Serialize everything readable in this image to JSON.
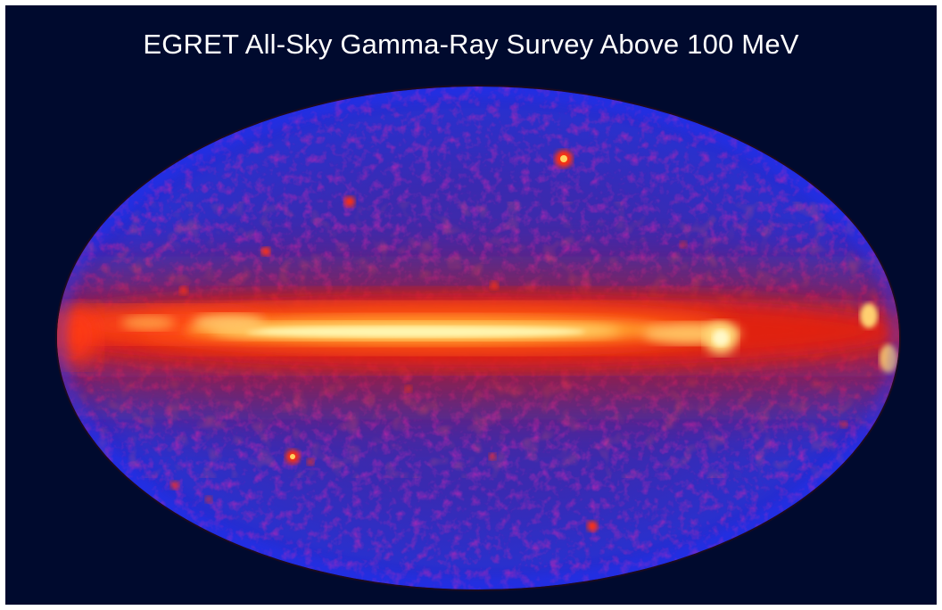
{
  "image": {
    "title": "EGRET All-Sky Gamma-Ray Survey Above 100 MeV",
    "colors": {
      "background": "#000a2e",
      "sky_base": "#2a2db8",
      "sky_edge": "#1c2bd8",
      "plane_red": "#e0200c",
      "plane_orange": "#ff7a1a",
      "plane_core": "#fff3a0",
      "source": "#ff3a10"
    },
    "elements": {
      "sky_map": "aitoff-projection-sky-map",
      "galactic_plane": "bright-emission-band",
      "point_sources": "bright-point-sources"
    }
  }
}
